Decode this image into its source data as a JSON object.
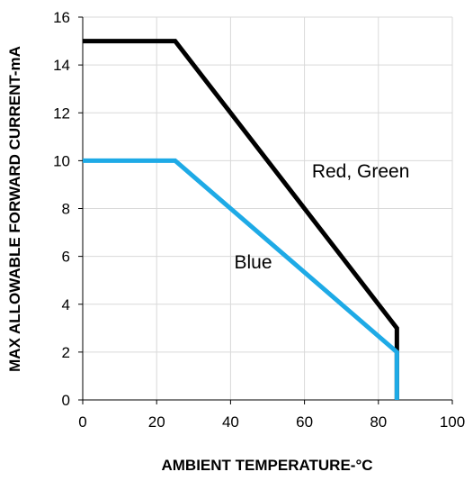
{
  "chart_data": {
    "type": "line",
    "title": "",
    "xlabel": "AMBIENT TEMPERATURE-°C",
    "ylabel": "MAX ALLOWABLE FORWARD CURRENT-mA",
    "xlim": [
      0,
      100
    ],
    "ylim": [
      0,
      16
    ],
    "x_ticks": [
      0,
      20,
      40,
      60,
      80,
      100
    ],
    "y_ticks": [
      0,
      2,
      4,
      6,
      8,
      10,
      12,
      14,
      16
    ],
    "grid": true,
    "series": [
      {
        "name": "Red, Green",
        "color": "#000000",
        "points": [
          [
            0,
            15
          ],
          [
            25,
            15
          ],
          [
            85,
            3
          ],
          [
            85,
            0
          ]
        ]
      },
      {
        "name": "Blue",
        "color": "#1eaae6",
        "points": [
          [
            0,
            10
          ],
          [
            25,
            10
          ],
          [
            85,
            2
          ],
          [
            85,
            0
          ]
        ]
      }
    ],
    "annotations": [
      {
        "text": "Red, Green",
        "x": 62,
        "y": 9.3
      },
      {
        "text": "Blue",
        "x": 41,
        "y": 5.5
      }
    ]
  }
}
